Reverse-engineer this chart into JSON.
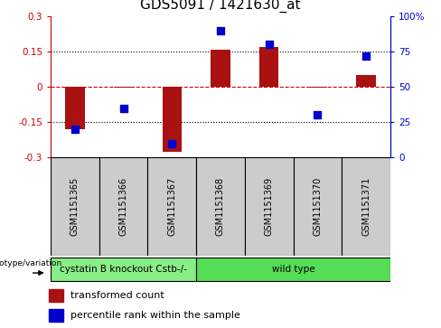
{
  "title": "GDS5091 / 1421630_at",
  "samples": [
    "GSM1151365",
    "GSM1151366",
    "GSM1151367",
    "GSM1151368",
    "GSM1151369",
    "GSM1151370",
    "GSM1151371"
  ],
  "red_bars": [
    -0.18,
    -0.005,
    -0.275,
    0.16,
    0.17,
    -0.005,
    0.05
  ],
  "blue_dots_pct": [
    20,
    35,
    10,
    90,
    80,
    30,
    72
  ],
  "ylim": [
    -0.3,
    0.3
  ],
  "right_ylim": [
    0,
    100
  ],
  "right_yticks": [
    0,
    25,
    50,
    75,
    100
  ],
  "right_yticklabels": [
    "0",
    "25",
    "50",
    "75",
    "100%"
  ],
  "left_yticks": [
    -0.3,
    -0.15,
    0,
    0.15,
    0.3
  ],
  "left_yticklabels": [
    "-0.3",
    "-0.15",
    "0",
    "0.15",
    "0.3"
  ],
  "dotted_lines": [
    -0.15,
    0.15
  ],
  "zero_dashed_color": "#cc0000",
  "bar_color": "#aa1111",
  "dot_color": "#0000cc",
  "groups": [
    {
      "label": "cystatin B knockout Cstb-/-",
      "span": [
        0,
        2
      ],
      "color": "#88ee88"
    },
    {
      "label": "wild type",
      "span": [
        3,
        6
      ],
      "color": "#55dd55"
    }
  ],
  "genotype_label": "genotype/variation",
  "legend_items": [
    {
      "color": "#aa1111",
      "label": "transformed count"
    },
    {
      "color": "#0000cc",
      "label": "percentile rank within the sample"
    }
  ],
  "background_color": "#ffffff",
  "sample_box_color": "#cccccc",
  "bar_width": 0.4,
  "dot_size": 35,
  "title_fontsize": 11,
  "tick_fontsize": 7.5,
  "sample_fontsize": 7,
  "legend_fontsize": 8,
  "group_fontsize": 7.5
}
